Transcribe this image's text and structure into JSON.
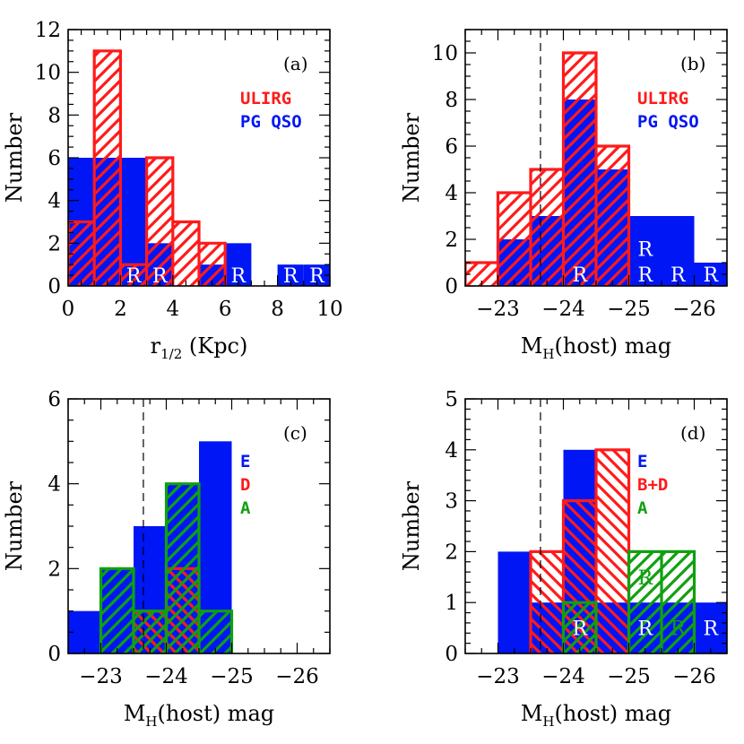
{
  "colors": {
    "blue": "#0016f5",
    "red": "#ff1a1a",
    "green": "#10a010",
    "axis": "#000000"
  },
  "chart_data": [
    {
      "panel_label": "(a)",
      "type": "bar",
      "xlabel": "r",
      "xlabel_sub": "1/2",
      "xlabel_suffix": " (Kpc)",
      "ylabel": "Number",
      "xlim": [
        0,
        10
      ],
      "ylim": [
        0,
        12
      ],
      "x_ticks": [
        0,
        2,
        4,
        6,
        8,
        10
      ],
      "y_ticks": [
        0,
        2,
        4,
        6,
        8,
        10,
        12
      ],
      "legend": [
        {
          "text": "ULIRG",
          "color": "red"
        },
        {
          "text": "PG QSO",
          "color": "blue"
        }
      ],
      "series": [
        {
          "name": "PG QSO",
          "color": "blue",
          "style": "solid",
          "bins": [
            [
              0,
              1,
              6
            ],
            [
              1,
              2,
              6
            ],
            [
              2,
              3,
              6
            ],
            [
              3,
              4,
              2
            ],
            [
              5,
              6,
              1
            ],
            [
              6,
              7,
              2
            ],
            [
              8,
              9,
              1
            ],
            [
              9,
              10,
              1
            ]
          ]
        },
        {
          "name": "ULIRG",
          "color": "red",
          "style": "hatch-up",
          "bins": [
            [
              0,
              1,
              3
            ],
            [
              1,
              2,
              11
            ],
            [
              2,
              3,
              1
            ],
            [
              3,
              4,
              6
            ],
            [
              4,
              5,
              3
            ],
            [
              5,
              6,
              2
            ]
          ]
        }
      ],
      "annotations": [
        {
          "text": "R",
          "x": 2.5,
          "y": 0.5,
          "color": "white"
        },
        {
          "text": "R",
          "x": 3.5,
          "y": 0.5,
          "color": "white"
        },
        {
          "text": "R",
          "x": 6.5,
          "y": 0.5,
          "color": "white"
        },
        {
          "text": "R",
          "x": 8.5,
          "y": 0.5,
          "color": "white"
        },
        {
          "text": "R",
          "x": 9.5,
          "y": 0.5,
          "color": "white"
        }
      ]
    },
    {
      "panel_label": "(b)",
      "type": "bar",
      "xlabel": "M",
      "xlabel_sub": "H",
      "xlabel_suffix": "(host) mag",
      "ylabel": "Number",
      "xlim": [
        -22.5,
        -26.5
      ],
      "ylim": [
        0,
        11
      ],
      "x_ticks": [
        -23,
        -24,
        -25,
        -26
      ],
      "y_ticks": [
        0,
        2,
        4,
        6,
        8,
        10
      ],
      "dashed_x": -23.65,
      "legend": [
        {
          "text": "ULIRG",
          "color": "red"
        },
        {
          "text": "PG QSO",
          "color": "blue"
        }
      ],
      "series": [
        {
          "name": "PG QSO",
          "color": "blue",
          "style": "solid",
          "bins": [
            [
              -23,
              -23.5,
              2
            ],
            [
              -23.5,
              -24,
              3
            ],
            [
              -24,
              -24.5,
              8
            ],
            [
              -24.5,
              -25,
              5
            ],
            [
              -25,
              -25.5,
              3
            ],
            [
              -25.5,
              -26,
              3
            ],
            [
              -26,
              -26.5,
              1
            ]
          ]
        },
        {
          "name": "ULIRG",
          "color": "red",
          "style": "hatch-up",
          "bins": [
            [
              -22.5,
              -23,
              1
            ],
            [
              -23,
              -23.5,
              4
            ],
            [
              -23.5,
              -24,
              5
            ],
            [
              -24,
              -24.5,
              10
            ],
            [
              -24.5,
              -25,
              6
            ]
          ]
        }
      ],
      "annotations": [
        {
          "text": "R",
          "x": -24.25,
          "y": 0.5,
          "color": "white"
        },
        {
          "text": "R",
          "x": -25.25,
          "y": 1.6,
          "color": "white"
        },
        {
          "text": "R",
          "x": -25.25,
          "y": 0.5,
          "color": "white"
        },
        {
          "text": "R",
          "x": -25.75,
          "y": 0.5,
          "color": "white"
        },
        {
          "text": "R",
          "x": -26.25,
          "y": 0.5,
          "color": "white"
        }
      ]
    },
    {
      "panel_label": "(c)",
      "type": "bar",
      "xlabel": "M",
      "xlabel_sub": "H",
      "xlabel_suffix": "(host) mag",
      "ylabel": "Number",
      "xlim": [
        -22.5,
        -26.5
      ],
      "ylim": [
        0,
        6
      ],
      "x_ticks": [
        -23,
        -24,
        -25,
        -26
      ],
      "y_ticks": [
        0,
        2,
        4,
        6
      ],
      "dashed_x": -23.65,
      "legend": [
        {
          "text": "E",
          "color": "blue"
        },
        {
          "text": "D",
          "color": "red"
        },
        {
          "text": "A",
          "color": "green"
        }
      ],
      "series": [
        {
          "name": "E",
          "color": "blue",
          "style": "solid",
          "bins": [
            [
              -22.5,
              -23,
              1
            ],
            [
              -23,
              -23.5,
              2
            ],
            [
              -23.5,
              -24,
              3
            ],
            [
              -24,
              -24.5,
              4
            ],
            [
              -24.5,
              -25,
              5
            ]
          ]
        },
        {
          "name": "D",
          "color": "red",
          "style": "hatch-down",
          "bins": [
            [
              -23.5,
              -24,
              1
            ],
            [
              -24,
              -24.5,
              2
            ]
          ]
        },
        {
          "name": "A",
          "color": "green",
          "style": "hatch-up",
          "bins": [
            [
              -23,
              -23.5,
              2
            ],
            [
              -23.5,
              -24,
              1
            ],
            [
              -24,
              -24.5,
              4
            ],
            [
              -24.5,
              -25,
              1
            ]
          ]
        }
      ],
      "annotations": []
    },
    {
      "panel_label": "(d)",
      "type": "bar",
      "xlabel": "M",
      "xlabel_sub": "H",
      "xlabel_suffix": "(host) mag",
      "ylabel": "Number",
      "xlim": [
        -22.5,
        -26.5
      ],
      "ylim": [
        0,
        5
      ],
      "x_ticks": [
        -23,
        -24,
        -25,
        -26
      ],
      "y_ticks": [
        0,
        1,
        2,
        3,
        4,
        5
      ],
      "dashed_x": -23.65,
      "legend": [
        {
          "text": "E",
          "color": "blue"
        },
        {
          "text": "B+D",
          "color": "red"
        },
        {
          "text": "A",
          "color": "green"
        }
      ],
      "series": [
        {
          "name": "E",
          "color": "blue",
          "style": "solid",
          "bins": [
            [
              -23,
              -23.5,
              2
            ],
            [
              -23.5,
              -24,
              1
            ],
            [
              -24,
              -24.5,
              4
            ],
            [
              -24.5,
              -25,
              1
            ],
            [
              -25,
              -25.5,
              1
            ],
            [
              -25.5,
              -26,
              1
            ],
            [
              -26,
              -26.5,
              1
            ]
          ]
        },
        {
          "name": "B+D",
          "color": "red",
          "style": "hatch-down",
          "bins": [
            [
              -23.5,
              -24,
              2
            ],
            [
              -24,
              -24.5,
              3
            ],
            [
              -24.5,
              -25,
              4
            ]
          ]
        },
        {
          "name": "A",
          "color": "green",
          "style": "hatch-up",
          "bins": [
            [
              -24,
              -24.5,
              1
            ],
            [
              -25,
              -25.5,
              2
            ],
            [
              -25.5,
              -26,
              2
            ]
          ]
        }
      ],
      "annotations": [
        {
          "text": "R",
          "x": -25.25,
          "y": 1.5,
          "color": "green"
        },
        {
          "text": "R",
          "x": -24.25,
          "y": 0.5,
          "color": "white"
        },
        {
          "text": "R",
          "x": -25.25,
          "y": 0.5,
          "color": "white"
        },
        {
          "text": "R",
          "x": -25.75,
          "y": 0.5,
          "color": "green"
        },
        {
          "text": "R",
          "x": -26.25,
          "y": 0.5,
          "color": "white"
        }
      ]
    }
  ]
}
